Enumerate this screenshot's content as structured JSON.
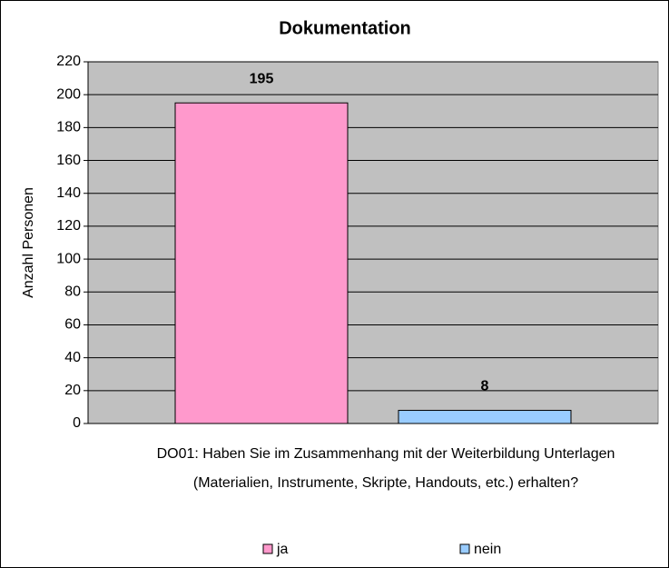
{
  "chart_data": {
    "type": "bar",
    "title": "Dokumentation",
    "y_label": "Anzahl Personen",
    "categories": [
      "DO01: Haben Sie im Zusammenhang mit der Weiterbildung Unterlagen (Materialien, Instrumente, Skripte, Handouts, etc.) erhalten?"
    ],
    "series": [
      {
        "name": "ja",
        "color": "#ff99cc",
        "values": [
          195
        ]
      },
      {
        "name": "nein",
        "color": "#99ccff",
        "values": [
          8
        ]
      }
    ],
    "ylim": [
      0,
      220
    ],
    "yticks": [
      0,
      20,
      40,
      60,
      80,
      100,
      120,
      140,
      160,
      180,
      200,
      220
    ],
    "grid": true,
    "legend": "bottom"
  }
}
